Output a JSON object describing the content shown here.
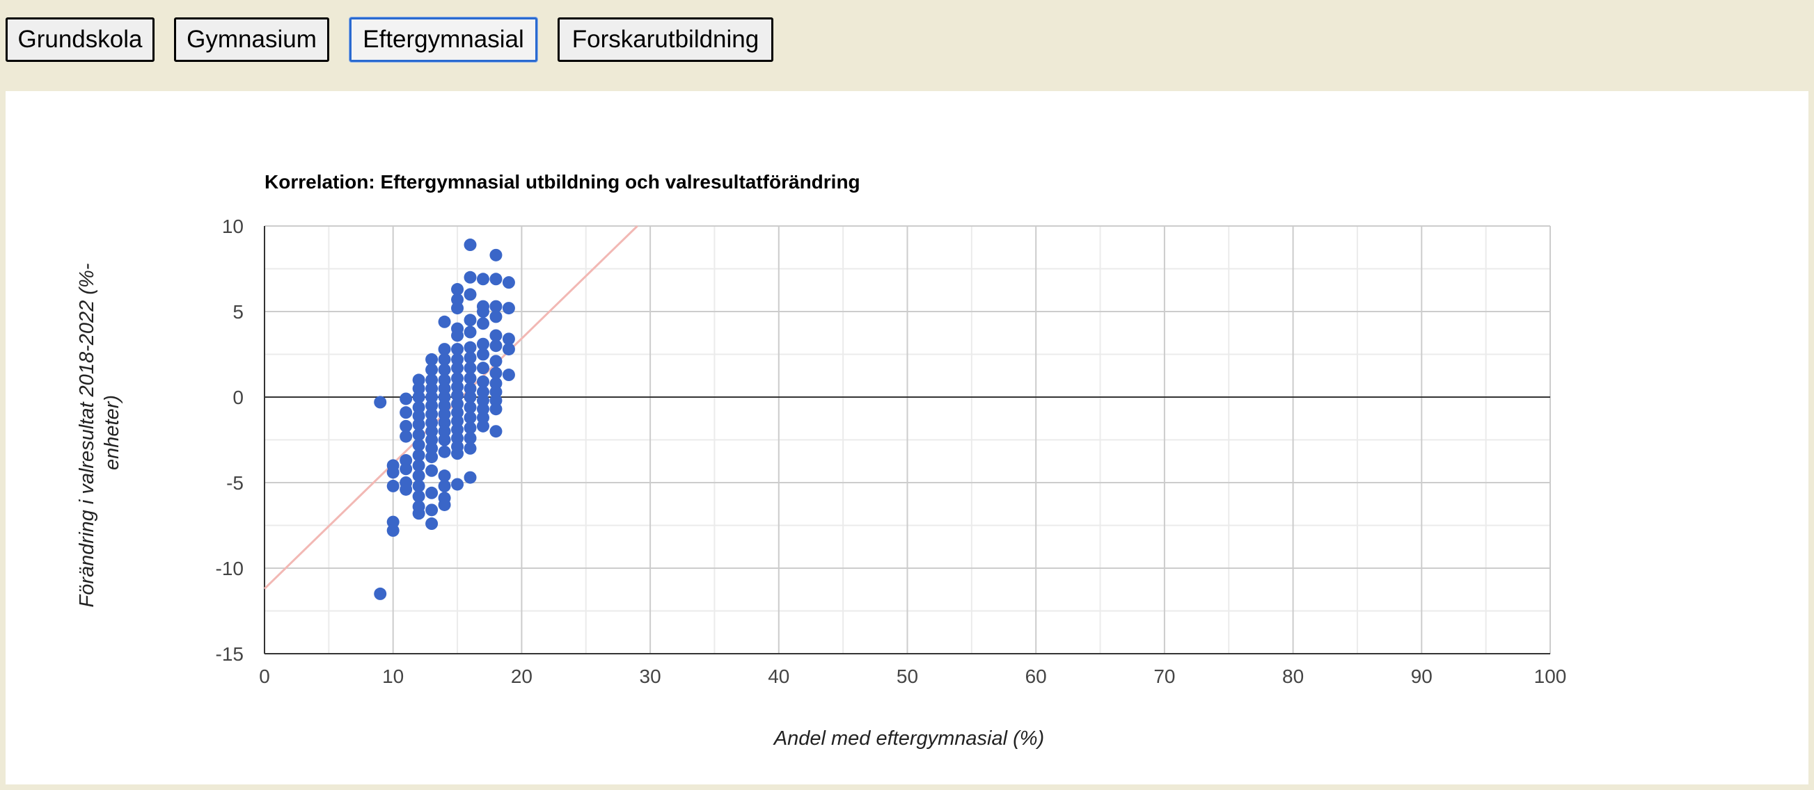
{
  "tabs": [
    {
      "label": "Grundskola",
      "active": false
    },
    {
      "label": "Gymnasium",
      "active": false
    },
    {
      "label": "Eftergymnasial",
      "active": true
    },
    {
      "label": "Forskarutbildning",
      "active": false
    }
  ],
  "colors": {
    "points": "#3a66c8",
    "trendline": "#f2b8b4",
    "zero_line": "#333333",
    "grid": "#cccccc",
    "minor_grid": "#ebebeb"
  },
  "chart_data": {
    "type": "scatter",
    "title": "Korrelation: Eftergymnasial utbildning och valresultatförändring",
    "xlabel": "Andel med eftergymnasial (%)",
    "ylabel": "Förändring i valresultat 2018-2022 (%-enheter)",
    "xlim": [
      0,
      100
    ],
    "ylim": [
      -15,
      10
    ],
    "xticks": [
      "0",
      "10",
      "20",
      "30",
      "40",
      "50",
      "60",
      "70",
      "80",
      "90",
      "100"
    ],
    "yticks": [
      "10",
      "5",
      "0",
      "-5",
      "-10",
      "-15"
    ],
    "grid": true,
    "legend": "none",
    "trendline": {
      "type": "linear",
      "x": [
        0,
        29
      ],
      "y": [
        -11.2,
        10
      ]
    },
    "points": [
      {
        "x": 9,
        "y": -0.3
      },
      {
        "x": 9,
        "y": -11.5
      },
      {
        "x": 10,
        "y": -4.0
      },
      {
        "x": 10,
        "y": -4.4
      },
      {
        "x": 10,
        "y": -5.2
      },
      {
        "x": 10,
        "y": -7.3
      },
      {
        "x": 10,
        "y": -7.8
      },
      {
        "x": 11,
        "y": -0.1
      },
      {
        "x": 11,
        "y": -0.9
      },
      {
        "x": 11,
        "y": -1.7
      },
      {
        "x": 11,
        "y": -2.3
      },
      {
        "x": 11,
        "y": -3.7
      },
      {
        "x": 11,
        "y": -4.2
      },
      {
        "x": 11,
        "y": -5.0
      },
      {
        "x": 11,
        "y": -5.4
      },
      {
        "x": 12,
        "y": 1.0
      },
      {
        "x": 12,
        "y": 0.5
      },
      {
        "x": 12,
        "y": 0.0
      },
      {
        "x": 12,
        "y": -0.6
      },
      {
        "x": 12,
        "y": -1.1
      },
      {
        "x": 12,
        "y": -1.6
      },
      {
        "x": 12,
        "y": -2.2
      },
      {
        "x": 12,
        "y": -2.8
      },
      {
        "x": 12,
        "y": -3.4
      },
      {
        "x": 12,
        "y": -4.0
      },
      {
        "x": 12,
        "y": -4.6
      },
      {
        "x": 12,
        "y": -5.2
      },
      {
        "x": 12,
        "y": -5.8
      },
      {
        "x": 12,
        "y": -6.4
      },
      {
        "x": 12,
        "y": -6.8
      },
      {
        "x": 13,
        "y": 2.2
      },
      {
        "x": 13,
        "y": 1.6
      },
      {
        "x": 13,
        "y": 1.0
      },
      {
        "x": 13,
        "y": 0.5
      },
      {
        "x": 13,
        "y": 0.0
      },
      {
        "x": 13,
        "y": -0.5
      },
      {
        "x": 13,
        "y": -1.0
      },
      {
        "x": 13,
        "y": -1.5
      },
      {
        "x": 13,
        "y": -2.0
      },
      {
        "x": 13,
        "y": -2.5
      },
      {
        "x": 13,
        "y": -3.0
      },
      {
        "x": 13,
        "y": -3.5
      },
      {
        "x": 13,
        "y": -4.3
      },
      {
        "x": 13,
        "y": -5.6
      },
      {
        "x": 13,
        "y": -6.6
      },
      {
        "x": 13,
        "y": -7.4
      },
      {
        "x": 14,
        "y": 4.4
      },
      {
        "x": 14,
        "y": 2.8
      },
      {
        "x": 14,
        "y": 2.2
      },
      {
        "x": 14,
        "y": 1.6
      },
      {
        "x": 14,
        "y": 1.0
      },
      {
        "x": 14,
        "y": 0.5
      },
      {
        "x": 14,
        "y": 0.0
      },
      {
        "x": 14,
        "y": -0.5
      },
      {
        "x": 14,
        "y": -1.0
      },
      {
        "x": 14,
        "y": -1.5
      },
      {
        "x": 14,
        "y": -2.0
      },
      {
        "x": 14,
        "y": -2.5
      },
      {
        "x": 14,
        "y": -3.2
      },
      {
        "x": 14,
        "y": -4.6
      },
      {
        "x": 14,
        "y": -5.2
      },
      {
        "x": 14,
        "y": -5.9
      },
      {
        "x": 14,
        "y": -6.3
      },
      {
        "x": 15,
        "y": 6.3
      },
      {
        "x": 15,
        "y": 5.7
      },
      {
        "x": 15,
        "y": 5.2
      },
      {
        "x": 15,
        "y": 4.0
      },
      {
        "x": 15,
        "y": 3.6
      },
      {
        "x": 15,
        "y": 2.8
      },
      {
        "x": 15,
        "y": 2.2
      },
      {
        "x": 15,
        "y": 1.7
      },
      {
        "x": 15,
        "y": 1.1
      },
      {
        "x": 15,
        "y": 0.6
      },
      {
        "x": 15,
        "y": 0.1
      },
      {
        "x": 15,
        "y": -0.4
      },
      {
        "x": 15,
        "y": -0.9
      },
      {
        "x": 15,
        "y": -1.4
      },
      {
        "x": 15,
        "y": -1.9
      },
      {
        "x": 15,
        "y": -2.4
      },
      {
        "x": 15,
        "y": -2.9
      },
      {
        "x": 15,
        "y": -3.3
      },
      {
        "x": 15,
        "y": -5.1
      },
      {
        "x": 16,
        "y": 8.9
      },
      {
        "x": 16,
        "y": 7.0
      },
      {
        "x": 16,
        "y": 6.0
      },
      {
        "x": 16,
        "y": 4.5
      },
      {
        "x": 16,
        "y": 3.8
      },
      {
        "x": 16,
        "y": 2.9
      },
      {
        "x": 16,
        "y": 2.3
      },
      {
        "x": 16,
        "y": 1.7
      },
      {
        "x": 16,
        "y": 1.1
      },
      {
        "x": 16,
        "y": 0.5
      },
      {
        "x": 16,
        "y": 0.0
      },
      {
        "x": 16,
        "y": -0.6
      },
      {
        "x": 16,
        "y": -1.2
      },
      {
        "x": 16,
        "y": -1.8
      },
      {
        "x": 16,
        "y": -2.4
      },
      {
        "x": 16,
        "y": -3.0
      },
      {
        "x": 16,
        "y": -4.7
      },
      {
        "x": 17,
        "y": 6.9
      },
      {
        "x": 17,
        "y": 5.3
      },
      {
        "x": 17,
        "y": 5.0
      },
      {
        "x": 17,
        "y": 4.3
      },
      {
        "x": 17,
        "y": 3.1
      },
      {
        "x": 17,
        "y": 2.5
      },
      {
        "x": 17,
        "y": 1.7
      },
      {
        "x": 17,
        "y": 0.9
      },
      {
        "x": 17,
        "y": 0.3
      },
      {
        "x": 17,
        "y": -0.2
      },
      {
        "x": 17,
        "y": -0.7
      },
      {
        "x": 17,
        "y": -1.2
      },
      {
        "x": 17,
        "y": -1.7
      },
      {
        "x": 18,
        "y": 8.3
      },
      {
        "x": 18,
        "y": 6.9
      },
      {
        "x": 18,
        "y": 5.3
      },
      {
        "x": 18,
        "y": 4.7
      },
      {
        "x": 18,
        "y": 3.6
      },
      {
        "x": 18,
        "y": 3.0
      },
      {
        "x": 18,
        "y": 2.1
      },
      {
        "x": 18,
        "y": 1.4
      },
      {
        "x": 18,
        "y": 0.8
      },
      {
        "x": 18,
        "y": 0.3
      },
      {
        "x": 18,
        "y": -0.2
      },
      {
        "x": 18,
        "y": -0.7
      },
      {
        "x": 18,
        "y": -2.0
      },
      {
        "x": 19,
        "y": 6.7
      },
      {
        "x": 19,
        "y": 5.2
      },
      {
        "x": 19,
        "y": 3.4
      },
      {
        "x": 19,
        "y": 2.8
      },
      {
        "x": 19,
        "y": 1.3
      }
    ]
  }
}
